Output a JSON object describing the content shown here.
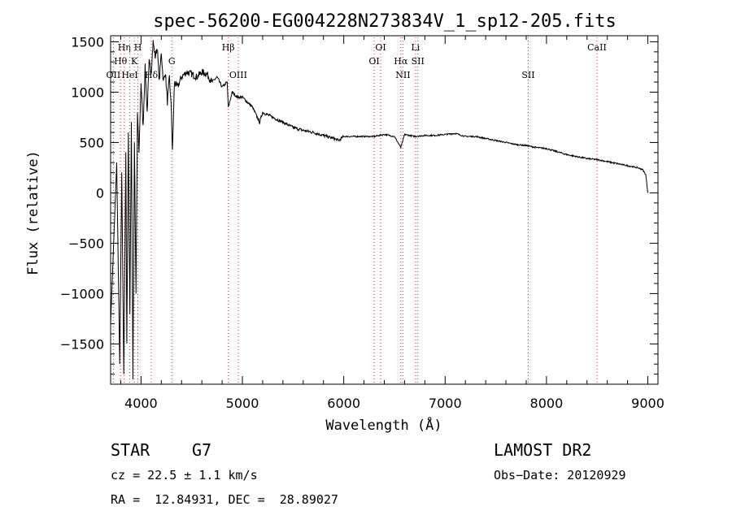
{
  "chart_data": {
    "type": "line",
    "title": "spec-56200-EG004228N273834V_1_sp12-205.fits",
    "xlabel": "Wavelength (Å)",
    "ylabel": "Flux (relative)",
    "xlim": [
      3700,
      9100
    ],
    "ylim": [
      -1900,
      1560
    ],
    "xticks": [
      4000,
      5000,
      6000,
      7000,
      8000,
      9000
    ],
    "yticks": [
      -1500,
      -1000,
      -500,
      0,
      500,
      1000,
      1500
    ],
    "xtick_labels": [
      "4000",
      "5000",
      "6000",
      "7000",
      "8000",
      "9000"
    ],
    "ytick_labels": [
      "−1500",
      "−1000",
      "−500",
      "0",
      "500",
      "1000",
      "1500"
    ],
    "line_color": "#000000",
    "marker_color": "#e03030",
    "series": [
      {
        "x": [
          3700,
          3760,
          3790,
          3810,
          3830,
          3850,
          3860,
          3875,
          3890,
          3905,
          3920,
          3935,
          3950,
          3965,
          3980,
          4000,
          4020,
          4040,
          4060,
          4080,
          4100,
          4120,
          4140,
          4160,
          4180,
          4200,
          4220,
          4240,
          4260,
          4280,
          4300,
          4310,
          4330,
          4360,
          4400,
          4450,
          4500,
          4550,
          4600,
          4650,
          4700,
          4750,
          4800,
          4850,
          4861,
          4900,
          4950,
          5000,
          5100,
          5170,
          5200,
          5300,
          5400,
          5500,
          5600,
          5700,
          5800,
          5900,
          5950,
          6000,
          6100,
          6200,
          6300,
          6400,
          6500,
          6563,
          6600,
          6700,
          6800,
          6900,
          7000,
          7100,
          7200,
          7300,
          7400,
          7500,
          7600,
          7700,
          7800,
          7900,
          8000,
          8100,
          8200,
          8300,
          8400,
          8500,
          8600,
          8700,
          8800,
          8900,
          8950,
          8980,
          9000
        ],
        "y": [
          -1300,
          300,
          -1700,
          200,
          -1800,
          400,
          -1500,
          600,
          -1200,
          700,
          -1850,
          500,
          -1000,
          800,
          400,
          1100,
          650,
          1250,
          800,
          1300,
          1200,
          1500,
          1350,
          1450,
          1100,
          1400,
          1100,
          1200,
          900,
          1150,
          800,
          400,
          1100,
          1050,
          1150,
          1200,
          1180,
          1150,
          1200,
          1180,
          1100,
          1150,
          1050,
          1100,
          850,
          1000,
          950,
          950,
          850,
          700,
          800,
          750,
          700,
          650,
          620,
          600,
          570,
          540,
          520,
          560,
          560,
          560,
          560,
          580,
          560,
          450,
          580,
          560,
          570,
          570,
          580,
          590,
          560,
          560,
          540,
          520,
          500,
          480,
          470,
          450,
          440,
          410,
          380,
          360,
          340,
          330,
          310,
          290,
          270,
          250,
          230,
          180,
          0
        ]
      }
    ],
    "line_markers": [
      {
        "x": 3727,
        "label": "OII",
        "row": 3
      },
      {
        "x": 3798,
        "label": "Hθ",
        "row": 2
      },
      {
        "x": 3835,
        "label": "Hη",
        "row": 1
      },
      {
        "x": 3889,
        "label": "HeI",
        "row": 3
      },
      {
        "x": 3934,
        "label": "K",
        "row": 2
      },
      {
        "x": 3969,
        "label": "H",
        "row": 1
      },
      {
        "x": 4101,
        "label": "Hδ",
        "row": 3
      },
      {
        "x": 4304,
        "label": "G",
        "row": 2
      },
      {
        "x": 4861,
        "label": "Hβ",
        "row": 1
      },
      {
        "x": 4959,
        "label": "OIII",
        "row": 3
      },
      {
        "x": 6300,
        "label": "OI",
        "row": 2
      },
      {
        "x": 6364,
        "label": "OI",
        "row": 1
      },
      {
        "x": 6563,
        "label": "Hα",
        "row": 2
      },
      {
        "x": 6584,
        "label": "NII",
        "row": 3
      },
      {
        "x": 6708,
        "label": "Li",
        "row": 1
      },
      {
        "x": 6731,
        "label": "SII",
        "row": 2
      },
      {
        "x": 7820,
        "label": "SII",
        "row": 3
      },
      {
        "x": 8498,
        "label": "CaII",
        "row": 1
      }
    ]
  },
  "info": {
    "class": "STAR",
    "subclass": "G7",
    "survey": "LAMOST DR2",
    "cz": "cz = 22.5 ± 1.1 km/s",
    "obs_date": "Obs−Date: 20120929",
    "coords": "RA =  12.84931, DEC =  28.89027"
  }
}
